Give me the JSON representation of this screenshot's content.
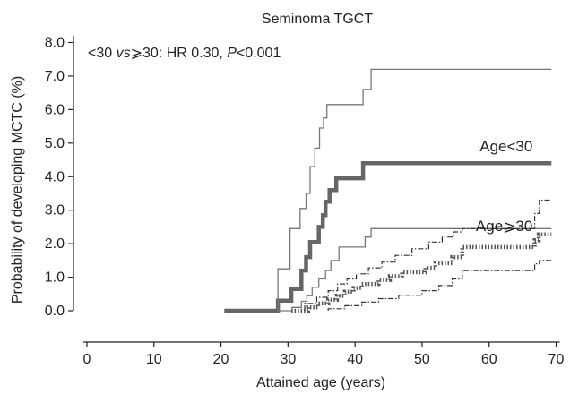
{
  "chart_data": {
    "type": "line",
    "title": "Seminoma TGCT",
    "annotation": {
      "prefix": "<30 ",
      "vs": "vs",
      "middle": "⩾30: HR 0.30, ",
      "p": "P",
      "suffix": "<0.001"
    },
    "xlabel": "Attained age (years)",
    "ylabel": "Probability of developing MCTC (%)",
    "xlim": [
      -2,
      71
    ],
    "ylim": [
      -0.4,
      8.2
    ],
    "xticks": [
      0,
      10,
      20,
      30,
      40,
      50,
      60,
      70
    ],
    "xtick_labels": [
      "0",
      "10",
      "20",
      "30",
      "40",
      "50",
      "60",
      "70"
    ],
    "yticks": [
      0,
      1,
      2,
      3,
      4,
      5,
      6,
      7,
      8
    ],
    "ytick_labels": [
      "0.0",
      "1.0",
      "2.0",
      "3.0",
      "4.0",
      "5.0",
      "6.0",
      "7.0",
      "8.0"
    ],
    "series": [
      {
        "name": "Age<30",
        "label": "Age<30",
        "color": "#666666",
        "style": "thick-step",
        "x": [
          20.5,
          28.5,
          28.5,
          30.5,
          30.5,
          32.0,
          32.0,
          32.7,
          32.7,
          33.3,
          33.3,
          34.6,
          34.6,
          35.2,
          35.2,
          35.6,
          35.6,
          36.2,
          36.2,
          37.2,
          37.2,
          41.2,
          41.2,
          42.4,
          42.4,
          69.3
        ],
        "y": [
          0.0,
          0.0,
          0.3,
          0.3,
          0.65,
          0.65,
          1.2,
          1.2,
          1.6,
          1.6,
          2.05,
          2.05,
          2.5,
          2.5,
          2.85,
          2.85,
          3.25,
          3.25,
          3.6,
          3.6,
          3.95,
          3.95,
          4.4,
          4.4,
          4.4,
          4.4
        ]
      },
      {
        "name": "Age<30 upper",
        "color": "#777777",
        "style": "thin-step",
        "x": [
          28.5,
          28.5,
          30.3,
          30.3,
          31.8,
          31.8,
          32.7,
          32.7,
          33.3,
          33.3,
          34.0,
          34.0,
          34.7,
          34.7,
          35.3,
          35.3,
          35.8,
          35.8,
          37.2,
          37.2,
          41.2,
          41.2,
          42.4,
          42.4,
          69.3
        ],
        "y": [
          0.0,
          1.25,
          1.25,
          2.45,
          2.45,
          3.05,
          3.05,
          3.5,
          3.5,
          4.3,
          4.3,
          4.85,
          4.85,
          5.45,
          5.45,
          5.75,
          5.75,
          6.15,
          6.15,
          6.15,
          6.15,
          6.6,
          6.6,
          7.2,
          7.2
        ]
      },
      {
        "name": "Age<30 lower",
        "color": "#777777",
        "style": "thin-step",
        "x": [
          28.5,
          30.6,
          30.6,
          32.0,
          32.0,
          32.8,
          32.8,
          33.6,
          33.6,
          34.6,
          34.6,
          35.6,
          35.6,
          36.4,
          36.4,
          37.6,
          37.6,
          41.5,
          41.5,
          42.4,
          42.4,
          69.3
        ],
        "y": [
          0.0,
          0.0,
          0.1,
          0.1,
          0.28,
          0.28,
          0.45,
          0.45,
          0.7,
          0.7,
          0.95,
          0.95,
          1.2,
          1.2,
          1.5,
          1.5,
          1.9,
          1.9,
          2.2,
          2.2,
          2.45,
          2.45
        ]
      },
      {
        "name": "Age⩾30",
        "label": "Age⩾30",
        "color": "#555555",
        "style": "dotted-step",
        "x": [
          30.5,
          33.0,
          33.0,
          34.5,
          34.5,
          36.0,
          36.0,
          37.3,
          37.3,
          38.5,
          38.5,
          39.8,
          39.8,
          41.0,
          41.0,
          43.5,
          43.5,
          45.2,
          45.2,
          47.0,
          47.0,
          50.5,
          50.5,
          52.0,
          52.0,
          54.5,
          54.5,
          56.0,
          56.0,
          66.8,
          66.8,
          67.4,
          67.4,
          69.3
        ],
        "y": [
          0.0,
          0.0,
          0.1,
          0.1,
          0.22,
          0.22,
          0.33,
          0.33,
          0.45,
          0.45,
          0.57,
          0.57,
          0.68,
          0.68,
          0.8,
          0.8,
          0.92,
          0.92,
          1.03,
          1.03,
          1.15,
          1.15,
          1.28,
          1.28,
          1.42,
          1.42,
          1.6,
          1.6,
          1.9,
          1.9,
          2.1,
          2.1,
          2.28,
          2.28
        ]
      },
      {
        "name": "Age⩾30 upper",
        "color": "#333333",
        "style": "dashdot-step",
        "x": [
          32.5,
          32.5,
          34.3,
          34.3,
          36.0,
          36.0,
          37.4,
          37.4,
          38.8,
          38.8,
          40.2,
          40.2,
          42.0,
          42.0,
          44.0,
          44.0,
          46.0,
          46.0,
          48.5,
          48.5,
          51.0,
          51.0,
          53.0,
          53.0,
          54.7,
          54.7,
          56.0,
          56.0,
          66.8,
          66.8,
          67.5,
          67.5,
          69.3
        ],
        "y": [
          0.0,
          0.22,
          0.22,
          0.4,
          0.4,
          0.6,
          0.6,
          0.8,
          0.8,
          0.95,
          0.95,
          1.1,
          1.1,
          1.28,
          1.28,
          1.45,
          1.45,
          1.65,
          1.65,
          1.85,
          1.85,
          2.05,
          2.05,
          2.2,
          2.2,
          2.35,
          2.35,
          2.45,
          2.45,
          2.9,
          2.9,
          3.3,
          3.3
        ]
      },
      {
        "name": "Age⩾30 lower",
        "color": "#333333",
        "style": "dashdot-step",
        "x": [
          36.0,
          36.0,
          38.5,
          38.5,
          41.0,
          41.0,
          43.5,
          43.5,
          46.5,
          46.5,
          50.0,
          50.0,
          52.5,
          52.5,
          54.5,
          54.5,
          56.0,
          56.0,
          66.8,
          66.8,
          67.5,
          67.5,
          69.3
        ],
        "y": [
          0.0,
          0.06,
          0.06,
          0.15,
          0.15,
          0.26,
          0.26,
          0.36,
          0.36,
          0.46,
          0.46,
          0.6,
          0.6,
          0.75,
          0.75,
          0.95,
          0.95,
          1.2,
          1.2,
          1.4,
          1.4,
          1.5,
          1.5
        ]
      }
    ],
    "grid": false
  }
}
